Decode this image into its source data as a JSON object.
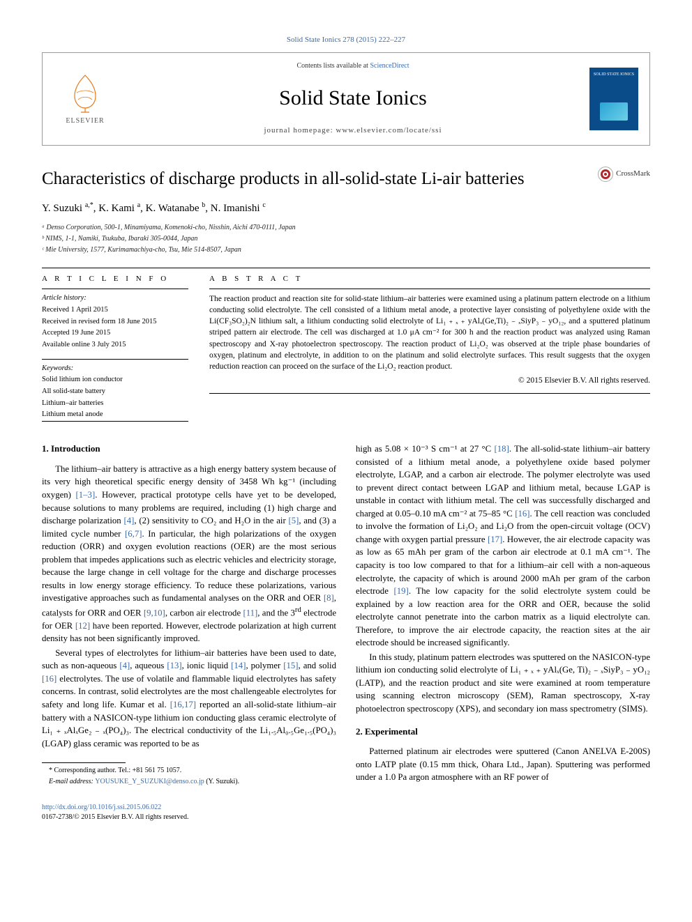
{
  "journal_ref": "Solid State Ionics 278 (2015) 222–227",
  "header": {
    "contents_prefix": "Contents lists available at ",
    "contents_link": "ScienceDirect",
    "journal_name": "Solid State Ionics",
    "homepage_label": "journal homepage: ",
    "homepage_url": "www.elsevier.com/locate/ssi",
    "elsevier_label": "ELSEVIER",
    "cover_label": "SOLID STATE IONICS"
  },
  "article": {
    "title": "Characteristics of discharge products in all-solid-state Li-air batteries",
    "crossmark_label": "CrossMark",
    "authors_html": "Y. Suzuki <sup>a,*</sup>, K. Kami <sup>a</sup>, K. Watanabe <sup>b</sup>, N. Imanishi <sup>c</sup>",
    "affiliations": [
      "ᵃ Denso Corporation, 500-1, Minamiyama, Komenoki-cho, Nisshin, Aichi 470-0111, Japan",
      "ᵇ NIMS, 1-1, Namiki, Tsukuba, Ibaraki 305-0044, Japan",
      "ᶜ Mie University, 1577, Kurimamachiya-cho, Tsu, Mie 514-8507, Japan"
    ]
  },
  "article_info": {
    "heading": "A R T I C L E   I N F O",
    "history_label": "Article history:",
    "history": [
      "Received 1 April 2015",
      "Received in revised form 18 June 2015",
      "Accepted 19 June 2015",
      "Available online 3 July 2015"
    ],
    "keywords_label": "Keywords:",
    "keywords": [
      "Solid lithium ion conductor",
      "All solid-state battery",
      "Lithium–air batteries",
      "Lithium metal anode"
    ]
  },
  "abstract": {
    "heading": "A B S T R A C T",
    "text": "The reaction product and reaction site for solid-state lithium–air batteries were examined using a platinum pattern electrode on a lithium conducting solid electrolyte. The cell consisted of a lithium metal anode, a protective layer consisting of polyethylene oxide with the Li(CF₃SO₂)₂N lithium salt, a lithium conducting solid electrolyte of Li₁ ₊ ₓ ₊ yAlₓ(Ge,Ti)₂ ₋ ₓSiyP₃ ₋ yO₁₂, and a sputtered platinum striped pattern air electrode. The cell was discharged at 1.0 μA cm⁻² for 300 h and the reaction product was analyzed using Raman spectroscopy and X-ray photoelectron spectroscopy. The reaction product of Li₂O₂ was observed at the triple phase boundaries of oxygen, platinum and electrolyte, in addition to on the platinum and solid electrolyte surfaces. This result suggests that the oxygen reduction reaction can proceed on the surface of the Li₂O₂ reaction product.",
    "copyright": "© 2015 Elsevier B.V. All rights reserved."
  },
  "sections": {
    "intro_heading": "1. Introduction",
    "intro_p1_html": "The lithium–air battery is attractive as a high energy battery system because of its very high theoretical specific energy density of 3458 Wh kg⁻¹ (including oxygen) <a href='#'>[1–3]</a>. However, practical prototype cells have yet to be developed, because solutions to many problems are required, including (1) high charge and discharge polarization <a href='#'>[4]</a>, (2) sensitivity to CO₂ and H₂O in the air <a href='#'>[5]</a>, and (3) a limited cycle number <a href='#'>[6,7]</a>. In particular, the high polarizations of the oxygen reduction (ORR) and oxygen evolution reactions (OER) are the most serious problem that impedes applications such as electric vehicles and electricity storage, because the large change in cell voltage for the charge and discharge processes results in low energy storage efficiency. To reduce these polarizations, various investigative approaches such as fundamental analyses on the ORR and OER <a href='#'>[8]</a>, catalysts for ORR and OER <a href='#'>[9,10]</a>, carbon air electrode <a href='#'>[11]</a>, and the 3<sup>rd</sup> electrode for OER <a href='#'>[12]</a> have been reported. However, electrode polarization at high current density has not been significantly improved.",
    "intro_p2_html": "Several types of electrolytes for lithium–air batteries have been used to date, such as non-aqueous <a href='#'>[4]</a>, aqueous <a href='#'>[13]</a>, ionic liquid <a href='#'>[14]</a>, polymer <a href='#'>[15]</a>, and solid <a href='#'>[16]</a> electrolytes. The use of volatile and flammable liquid electrolytes has safety concerns. In contrast, solid electrolytes are the most challengeable electrolytes for safety and long life. Kumar et al. <a href='#'>[16,17]</a> reported an all-solid-state lithium–air battery with a NASICON-type lithium ion conducting glass ceramic electrolyte of Li₁ ₊ ₓAlₓGe₂ ₋ ₓ(PO₄)₃. The electrical conductivity of the Li₁.₅Al₀.₅Ge₁.₅(PO₄)₃ (LGAP) glass ceramic was reported to be as",
    "intro_p3_html": "high as 5.08 × 10⁻³ S cm⁻¹ at 27 °C <a href='#'>[18]</a>. The all-solid-state lithium–air battery consisted of a lithium metal anode, a polyethylene oxide based polymer electrolyte, LGAP, and a carbon air electrode. The polymer electrolyte was used to prevent direct contact between LGAP and lithium metal, because LGAP is unstable in contact with lithium metal. The cell was successfully discharged and charged at 0.05–0.10 mA cm⁻² at 75–85 °C <a href='#'>[16]</a>. The cell reaction was concluded to involve the formation of Li₂O₂ and Li₂O from the open-circuit voltage (OCV) change with oxygen partial pressure <a href='#'>[17]</a>. However, the air electrode capacity was as low as 65 mAh per gram of the carbon air electrode at 0.1 mA cm⁻¹. The capacity is too low compared to that for a lithium–air cell with a non-aqueous electrolyte, the capacity of which is around 2000 mAh per gram of the carbon electrode <a href='#'>[19]</a>. The low capacity for the solid electrolyte system could be explained by a low reaction area for the ORR and OER, because the solid electrolyte cannot penetrate into the carbon matrix as a liquid electrolyte can. Therefore, to improve the air electrode capacity, the reaction sites at the air electrode should be increased significantly.",
    "intro_p4_html": "In this study, platinum pattern electrodes was sputtered on the NASICON-type lithium ion conducting solid electrolyte of Li₁ ₊ ₓ ₊ yAlₓ(Ge, Ti)₂ ₋ ₓSiyP₃ ₋ yO₁₂ (LATP), and the reaction product and site were examined at room temperature using scanning electron microscopy (SEM), Raman spectroscopy, X-ray photoelectron spectroscopy (XPS), and secondary ion mass spectrometry (SIMS).",
    "exp_heading": "2. Experimental",
    "exp_p1_html": "Patterned platinum air electrodes were sputtered (Canon ANELVA E-200S) onto LATP plate (0.15 mm thick, Ohara Ltd., Japan). Sputtering was performed under a 1.0 Pa argon atmosphere with an RF power of"
  },
  "footnotes": {
    "corr": "* Corresponding author. Tel.: +81 561 75 1057.",
    "email_label": "E-mail address: ",
    "email": "YOUSUKE_Y_SUZUKI@denso.co.jp",
    "email_suffix": " (Y. Suzuki)."
  },
  "footer": {
    "doi": "http://dx.doi.org/10.1016/j.ssi.2015.06.022",
    "issn_line": "0167-2738/© 2015 Elsevier B.V. All rights reserved."
  },
  "colors": {
    "link": "#3a6aa8",
    "elsevier_orange": "#e67817",
    "cover_blue": "#0a4b8a"
  }
}
